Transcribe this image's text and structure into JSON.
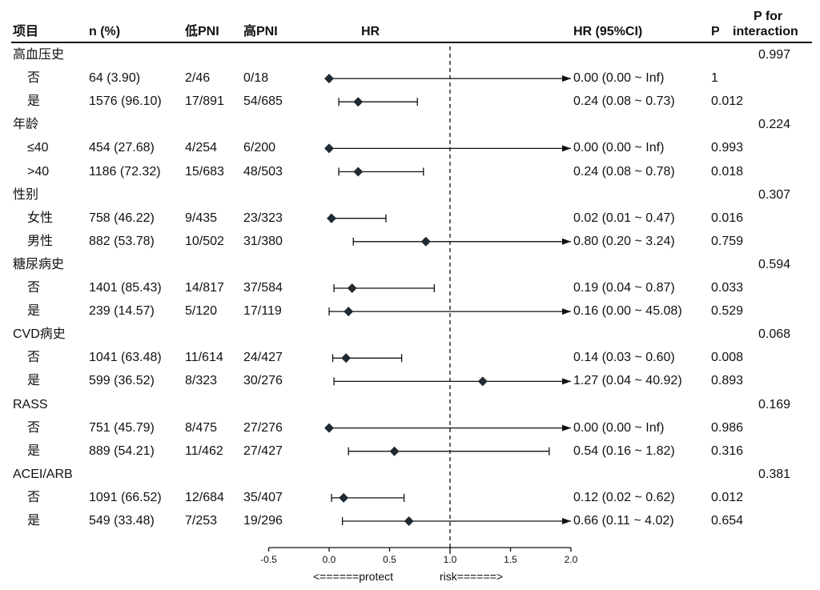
{
  "headers": {
    "item": "项目",
    "n": "n (%)",
    "low": "低PNI",
    "high": "高PNI",
    "hr": "HR",
    "hrci": "HR (95%CI)",
    "p": "P",
    "pint": [
      "P for",
      "interaction"
    ]
  },
  "chart_data": {
    "type": "forest",
    "x_axis": {
      "ticks": [
        "-0.5",
        "0.0",
        "0.5",
        "1.0",
        "1.5",
        "2.0"
      ],
      "tick_values": [
        -0.5,
        0,
        0.5,
        1.0,
        1.5,
        2.0
      ],
      "range": [
        -0.5,
        2.0
      ],
      "reference_line": 1.0
    },
    "direction_labels": {
      "left": "<======protect",
      "right": "risk======>"
    },
    "groups": [
      {
        "name": "高血压史",
        "p_interaction": "0.997",
        "rows": [
          {
            "label": "否",
            "n": "64 (3.90)",
            "low": "2/46",
            "high": "0/18",
            "hr": 0.0,
            "lo": 0.0,
            "hi": "Inf",
            "text": "0.00 (0.00 ~ Inf)",
            "p": "1"
          },
          {
            "label": "是",
            "n": "1576 (96.10)",
            "low": "17/891",
            "high": "54/685",
            "hr": 0.24,
            "lo": 0.08,
            "hi": 0.73,
            "text": "0.24 (0.08 ~ 0.73)",
            "p": "0.012"
          }
        ]
      },
      {
        "name": "年龄",
        "p_interaction": "0.224",
        "rows": [
          {
            "label": "≤40",
            "n": "454 (27.68)",
            "low": "4/254",
            "high": "6/200",
            "hr": 0.0,
            "lo": 0.0,
            "hi": "Inf",
            "text": "0.00 (0.00 ~ Inf)",
            "p": "0.993"
          },
          {
            "label": ">40",
            "n": "1186 (72.32)",
            "low": "15/683",
            "high": "48/503",
            "hr": 0.24,
            "lo": 0.08,
            "hi": 0.78,
            "text": "0.24 (0.08 ~ 0.78)",
            "p": "0.018"
          }
        ]
      },
      {
        "name": "性别",
        "p_interaction": "0.307",
        "rows": [
          {
            "label": "女性",
            "n": "758 (46.22)",
            "low": "9/435",
            "high": "23/323",
            "hr": 0.02,
            "lo": 0.01,
            "hi": 0.47,
            "text": "0.02 (0.01 ~ 0.47)",
            "p": "0.016"
          },
          {
            "label": "男性",
            "n": "882 (53.78)",
            "low": "10/502",
            "high": "31/380",
            "hr": 0.8,
            "lo": 0.2,
            "hi": 3.24,
            "text": "0.80 (0.20 ~ 3.24)",
            "p": "0.759"
          }
        ]
      },
      {
        "name": "糖尿病史",
        "p_interaction": "0.594",
        "rows": [
          {
            "label": "否",
            "n": "1401 (85.43)",
            "low": "14/817",
            "high": "37/584",
            "hr": 0.19,
            "lo": 0.04,
            "hi": 0.87,
            "text": "0.19 (0.04 ~ 0.87)",
            "p": "0.033"
          },
          {
            "label": "是",
            "n": "239 (14.57)",
            "low": "5/120",
            "high": "17/119",
            "hr": 0.16,
            "lo": 0.0,
            "hi": 45.08,
            "text": "0.16 (0.00 ~ 45.08)",
            "p": "0.529"
          }
        ]
      },
      {
        "name": "CVD病史",
        "p_interaction": "0.068",
        "rows": [
          {
            "label": "否",
            "n": "1041 (63.48)",
            "low": "11/614",
            "high": "24/427",
            "hr": 0.14,
            "lo": 0.03,
            "hi": 0.6,
            "text": "0.14 (0.03 ~ 0.60)",
            "p": "0.008"
          },
          {
            "label": "是",
            "n": "599 (36.52)",
            "low": "8/323",
            "high": "30/276",
            "hr": 1.27,
            "lo": 0.04,
            "hi": 40.92,
            "text": "1.27 (0.04 ~ 40.92)",
            "p": "0.893"
          }
        ]
      },
      {
        "name": "RASS",
        "p_interaction": "0.169",
        "rows": [
          {
            "label": "否",
            "n": "751 (45.79)",
            "low": "8/475",
            "high": "27/276",
            "hr": 0.0,
            "lo": 0.0,
            "hi": "Inf",
            "text": "0.00 (0.00 ~ Inf)",
            "p": "0.986"
          },
          {
            "label": "是",
            "n": "889 (54.21)",
            "low": "11/462",
            "high": "27/427",
            "hr": 0.54,
            "lo": 0.16,
            "hi": 1.82,
            "text": "0.54 (0.16 ~ 1.82)",
            "p": "0.316"
          }
        ]
      },
      {
        "name": "ACEI/ARB",
        "p_interaction": "0.381",
        "rows": [
          {
            "label": "否",
            "n": "1091 (66.52)",
            "low": "12/684",
            "high": "35/407",
            "hr": 0.12,
            "lo": 0.02,
            "hi": 0.62,
            "text": "0.12 (0.02 ~ 0.62)",
            "p": "0.012"
          },
          {
            "label": "是",
            "n": "549 (33.48)",
            "low": "7/253",
            "high": "19/296",
            "hr": 0.66,
            "lo": 0.11,
            "hi": 4.02,
            "text": "0.66 (0.11 ~ 4.02)",
            "p": "0.654"
          }
        ]
      }
    ]
  }
}
